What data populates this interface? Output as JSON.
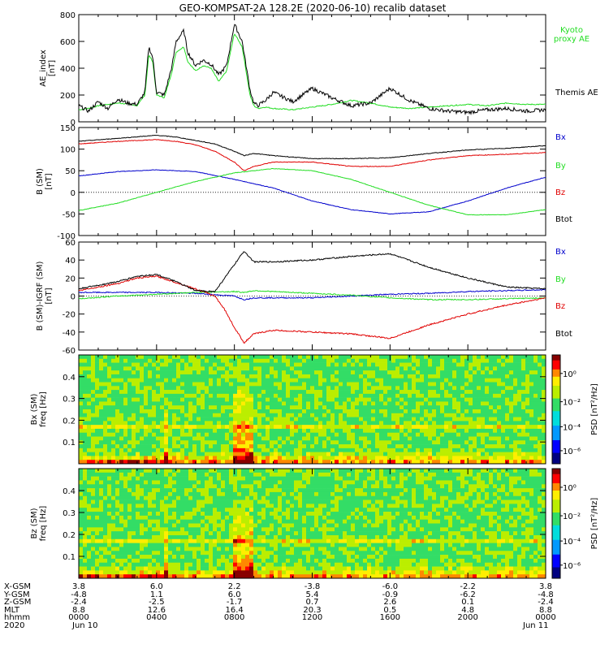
{
  "title": "GEO-KOMPSAT-2A 128.2E (2020-06-10) recalib dataset",
  "colors": {
    "black": "#000000",
    "red": "#e00000",
    "green": "#22dd22",
    "blue": "#0000cc"
  },
  "chart_data": [
    {
      "type": "line",
      "ylabel": [
        "AE_index",
        "[nT]"
      ],
      "ylim": [
        0,
        800
      ],
      "yticks": [
        0,
        200,
        400,
        600,
        800
      ],
      "xlim_hours": [
        0,
        24
      ],
      "legend_placement": "right",
      "series": [
        {
          "name": "Kyoto proxy AE",
          "label_lines": [
            "Kyoto",
            "proxy AE"
          ],
          "color": "#22dd22",
          "x": [
            0,
            0.5,
            1,
            1.5,
            2,
            2.5,
            3,
            3.4,
            3.6,
            3.8,
            4,
            4.4,
            4.8,
            5,
            5.4,
            5.6,
            6,
            6.4,
            6.8,
            7.2,
            7.6,
            8,
            8.4,
            8.8,
            9,
            9.2,
            9.6,
            10,
            11,
            12,
            13,
            14,
            15,
            16,
            17,
            18,
            19,
            20,
            21,
            22,
            23,
            24
          ],
          "y": [
            90,
            100,
            120,
            130,
            140,
            135,
            120,
            200,
            500,
            450,
            200,
            180,
            380,
            520,
            560,
            450,
            380,
            420,
            400,
            300,
            380,
            660,
            560,
            200,
            120,
            100,
            110,
            100,
            90,
            110,
            130,
            160,
            140,
            110,
            100,
            110,
            120,
            130,
            120,
            140,
            130,
            130
          ]
        },
        {
          "name": "Themis AE",
          "label_lines": [
            "Themis AE"
          ],
          "color": "#000000",
          "x": [
            0,
            0.5,
            1,
            1.5,
            2,
            2.5,
            3,
            3.4,
            3.6,
            3.8,
            4,
            4.4,
            4.8,
            5,
            5.4,
            5.6,
            6,
            6.4,
            6.8,
            7.2,
            7.6,
            8,
            8.4,
            8.8,
            9,
            9.2,
            9.6,
            10,
            11,
            12,
            13,
            14,
            15,
            16,
            17,
            18,
            19,
            20,
            21,
            22,
            23,
            24
          ],
          "y": [
            120,
            80,
            150,
            100,
            170,
            140,
            130,
            220,
            560,
            480,
            220,
            200,
            420,
            600,
            680,
            520,
            420,
            460,
            430,
            350,
            420,
            730,
            600,
            240,
            140,
            120,
            160,
            220,
            150,
            250,
            180,
            120,
            140,
            250,
            160,
            100,
            80,
            70,
            90,
            100,
            80,
            90
          ]
        }
      ]
    },
    {
      "type": "line",
      "ylabel": [
        "B (SM)",
        "[nT]"
      ],
      "ylim": [
        -100,
        150
      ],
      "yticks": [
        -100,
        -50,
        0,
        50,
        100,
        150
      ],
      "xlim_hours": [
        0,
        24
      ],
      "legend_placement": "right",
      "series": [
        {
          "name": "Bx",
          "color": "#0000cc",
          "x": [
            0,
            2,
            4,
            6,
            8,
            10,
            12,
            14,
            16,
            18,
            20,
            22,
            24
          ],
          "y": [
            38,
            48,
            52,
            48,
            30,
            10,
            -20,
            -40,
            -50,
            -45,
            -20,
            10,
            35
          ]
        },
        {
          "name": "By",
          "color": "#22dd22",
          "x": [
            0,
            2,
            4,
            6,
            8,
            10,
            12,
            14,
            16,
            18,
            20,
            22,
            24
          ],
          "y": [
            -42,
            -25,
            0,
            25,
            45,
            55,
            50,
            30,
            0,
            -30,
            -52,
            -52,
            -40
          ]
        },
        {
          "name": "Bz",
          "color": "#e00000",
          "x": [
            0,
            2,
            4,
            5,
            6,
            7,
            8,
            8.5,
            9,
            10,
            12,
            14,
            16,
            18,
            20,
            22,
            24
          ],
          "y": [
            112,
            118,
            122,
            118,
            110,
            95,
            70,
            50,
            60,
            70,
            70,
            60,
            60,
            75,
            85,
            88,
            92
          ]
        },
        {
          "name": "Btot",
          "color": "#000000",
          "x": [
            0,
            2,
            4,
            5,
            6,
            7,
            8,
            8.5,
            9,
            10,
            12,
            14,
            16,
            18,
            20,
            22,
            24
          ],
          "y": [
            118,
            125,
            132,
            128,
            120,
            112,
            95,
            85,
            90,
            85,
            78,
            78,
            80,
            90,
            98,
            102,
            108
          ]
        }
      ]
    },
    {
      "type": "line",
      "ylabel": [
        "B (SM)-IGRF (SM)",
        "[nT]"
      ],
      "ylim": [
        -60,
        60
      ],
      "yticks": [
        -60,
        -40,
        -20,
        0,
        20,
        40,
        60
      ],
      "xlim_hours": [
        0,
        24
      ],
      "legend_placement": "right",
      "series": [
        {
          "name": "Bx",
          "color": "#0000cc",
          "x": [
            0,
            2,
            4,
            6,
            8,
            8.5,
            9,
            10,
            12,
            14,
            16,
            18,
            20,
            22,
            24
          ],
          "y": [
            4,
            4,
            4,
            3,
            0,
            -4,
            -2,
            -2,
            -2,
            0,
            2,
            3,
            5,
            6,
            7
          ]
        },
        {
          "name": "By",
          "color": "#22dd22",
          "x": [
            0,
            2,
            4,
            6,
            8,
            8.5,
            9,
            10,
            12,
            14,
            16,
            18,
            20,
            22,
            24
          ],
          "y": [
            -3,
            0,
            2,
            4,
            5,
            4,
            6,
            5,
            3,
            1,
            -2,
            -4,
            -4,
            -3,
            -2
          ]
        },
        {
          "name": "Bz",
          "color": "#e00000",
          "x": [
            0,
            1,
            2,
            3,
            4,
            5,
            6,
            7,
            7.5,
            8,
            8.5,
            9,
            10,
            12,
            14,
            16,
            18,
            20,
            22,
            24
          ],
          "y": [
            6,
            10,
            14,
            20,
            22,
            15,
            8,
            0,
            -15,
            -35,
            -52,
            -42,
            -38,
            -40,
            -42,
            -47,
            -32,
            -20,
            -10,
            -2
          ]
        },
        {
          "name": "Btot",
          "color": "#000000",
          "x": [
            0,
            1,
            2,
            3,
            4,
            5,
            6,
            7,
            7.5,
            8,
            8.5,
            9,
            10,
            12,
            14,
            16,
            18,
            20,
            22,
            24
          ],
          "y": [
            8,
            12,
            16,
            22,
            24,
            16,
            6,
            5,
            20,
            35,
            50,
            38,
            38,
            40,
            44,
            47,
            32,
            20,
            10,
            8
          ]
        }
      ]
    },
    {
      "type": "heatmap",
      "ylabel": [
        "Bx (SM)",
        "freq [Hz]"
      ],
      "ylim": [
        0,
        0.5
      ],
      "yticks": [
        0.1,
        0.2,
        0.3,
        0.4
      ],
      "colorbar_label": "PSD [nT²/Hz]",
      "colorbar_ticks": [
        "10⁰",
        "10⁻²",
        "10⁻⁴",
        "10⁻⁶"
      ]
    },
    {
      "type": "heatmap",
      "ylabel": [
        "Bz (SM)",
        "freq [Hz]"
      ],
      "ylim": [
        0,
        0.5
      ],
      "yticks": [
        0.1,
        0.2,
        0.3,
        0.4
      ],
      "colorbar_label": "PSD [nT²/Hz]",
      "colorbar_ticks": [
        "10⁰",
        "10⁻²",
        "10⁻⁴",
        "10⁻⁶"
      ]
    }
  ],
  "ephemeris": {
    "row_labels": [
      "X-GSM",
      "Y-GSM",
      "Z-GSM",
      "MLT",
      "hhmm",
      "2020"
    ],
    "columns": [
      [
        "3.8",
        "-4.8",
        "-2.4",
        "8.8",
        "0000",
        "Jun 10"
      ],
      [
        "6.0",
        "1.1",
        "-2.5",
        "12.6",
        "0400",
        ""
      ],
      [
        "2.2",
        "6.0",
        "-1.7",
        "16.4",
        "0800",
        ""
      ],
      [
        "-3.8",
        "5.4",
        "0.7",
        "20.3",
        "1200",
        ""
      ],
      [
        "-6.0",
        "-0.9",
        "2.6",
        "0.5",
        "1600",
        ""
      ],
      [
        "-2.2",
        "-6.2",
        "0.1",
        "4.8",
        "2000",
        ""
      ],
      [
        "3.8",
        "-4.8",
        "-2.4",
        "8.8",
        "0000",
        "Jun 11"
      ]
    ]
  }
}
